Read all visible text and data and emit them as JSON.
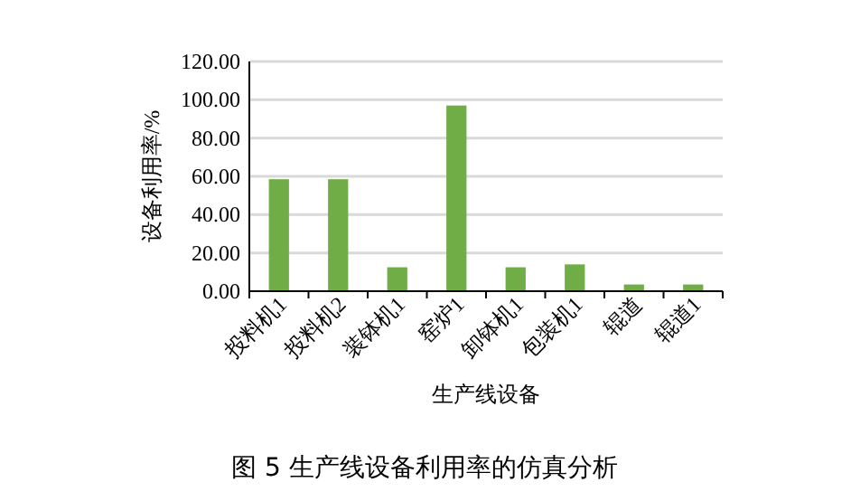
{
  "chart_data": {
    "type": "bar",
    "title": "图 5  生产线设备利用率的仿真分析",
    "xlabel": "生产线设备",
    "ylabel": "设备利用率/%",
    "categories": [
      "投料机1",
      "投料机2",
      "装钵机1",
      "窑炉1",
      "卸钵机1",
      "包装机1",
      "辊道",
      "辊道1"
    ],
    "values": [
      58.5,
      58.5,
      12.5,
      97,
      12.5,
      14,
      3.5,
      3.5
    ],
    "color": "#70ad47",
    "ylim": [
      0,
      120
    ],
    "yticks": [
      {
        "value": 0,
        "label": "0.00"
      },
      {
        "value": 20,
        "label": "20.00"
      },
      {
        "value": 40,
        "label": "40.00"
      },
      {
        "value": 60,
        "label": "60.00"
      },
      {
        "value": 80,
        "label": "80.00"
      },
      {
        "value": 100,
        "label": "100.00"
      },
      {
        "value": 120,
        "label": "120.00"
      }
    ],
    "grid": "y"
  }
}
